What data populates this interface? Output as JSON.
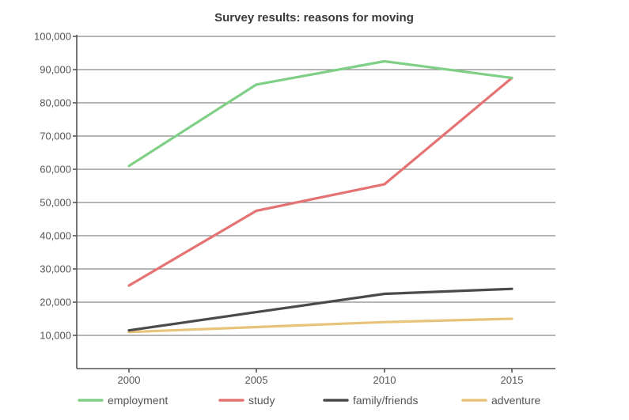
{
  "chart_data": {
    "type": "line",
    "title": "Survey results: reasons for moving",
    "xlabel": "",
    "ylabel": "",
    "x": [
      "2000",
      "2005",
      "2010",
      "2015"
    ],
    "ylim": [
      0,
      100000
    ],
    "yticks": [
      "10,000",
      "20,000",
      "30,000",
      "40,000",
      "50,000",
      "60,000",
      "70,000",
      "80,000",
      "90,000",
      "100,000"
    ],
    "ytick_values": [
      10000,
      20000,
      30000,
      40000,
      50000,
      60000,
      70000,
      80000,
      90000,
      100000
    ],
    "grid": true,
    "legend_position": "bottom",
    "series": [
      {
        "name": "employment",
        "color": "#7fcf87",
        "values": [
          61000,
          85500,
          92500,
          87500
        ]
      },
      {
        "name": "study",
        "color": "#e57373",
        "values": [
          25000,
          47500,
          55500,
          87500
        ]
      },
      {
        "name": "family/friends",
        "color": "#4a4a4a",
        "values": [
          11500,
          17000,
          22500,
          24000
        ]
      },
      {
        "name": "adventure",
        "color": "#e8c47a",
        "values": [
          11000,
          12500,
          14000,
          15000
        ]
      }
    ]
  }
}
